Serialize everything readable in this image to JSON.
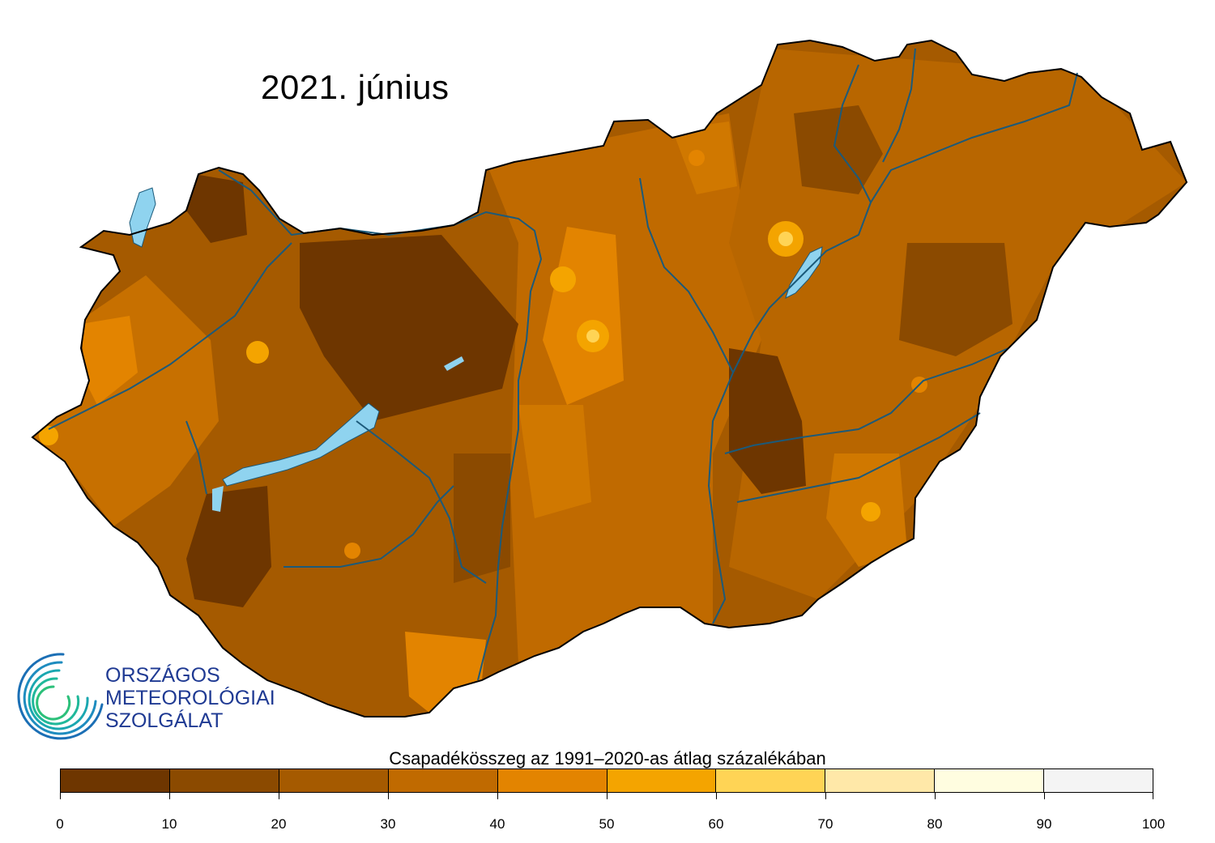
{
  "title": "2021. június",
  "logo": {
    "line1": "ORSZÁGOS",
    "line2": "METEOROLÓGIAI",
    "line3": "SZOLGÁLAT",
    "icon": "omsz-spiral-logo"
  },
  "legend": {
    "title": "Csapadékösszeg az 1991–2020-as átlag százalékában",
    "ticks": [
      "0",
      "10",
      "20",
      "30",
      "40",
      "50",
      "60",
      "70",
      "80",
      "90",
      "100"
    ],
    "colors": [
      "#6e3600",
      "#8b4a00",
      "#a55a00",
      "#c06a00",
      "#e38400",
      "#f4a400",
      "#ffd455",
      "#ffe8a8",
      "#fffde0",
      "#f4f4f4"
    ]
  },
  "map": {
    "colors": {
      "border": "#000000",
      "rivers": "#1b5a7a",
      "lakes": "#8fd3ef"
    }
  }
}
